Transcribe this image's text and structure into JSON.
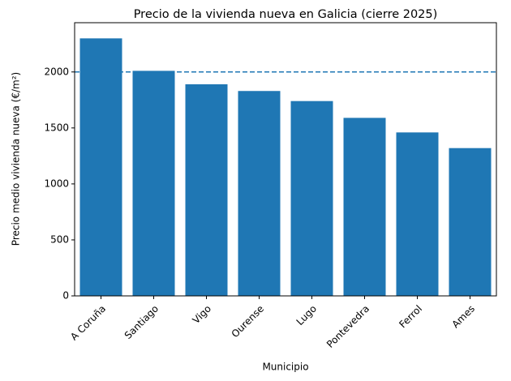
{
  "chart_data": {
    "type": "bar",
    "title": "Precio de la vivienda nueva en Galicia (cierre 2025)",
    "x_label": "Municipio",
    "y_label": "Precio medio vivienda nueva (€/m²)",
    "categories": [
      "A Coruña",
      "Santiago",
      "Vigo",
      "Ourense",
      "Lugo",
      "Pontevedra",
      "Ferrol",
      "Ames"
    ],
    "values": [
      2300,
      2010,
      1890,
      1830,
      1740,
      1590,
      1460,
      1320
    ],
    "color": "#1f77b4",
    "reference_line": 2000,
    "reference_color": "#1f77b4",
    "ylim": [
      0,
      2440
    ],
    "yticks": [
      0,
      500,
      1000,
      1500,
      2000
    ],
    "grid": false
  }
}
